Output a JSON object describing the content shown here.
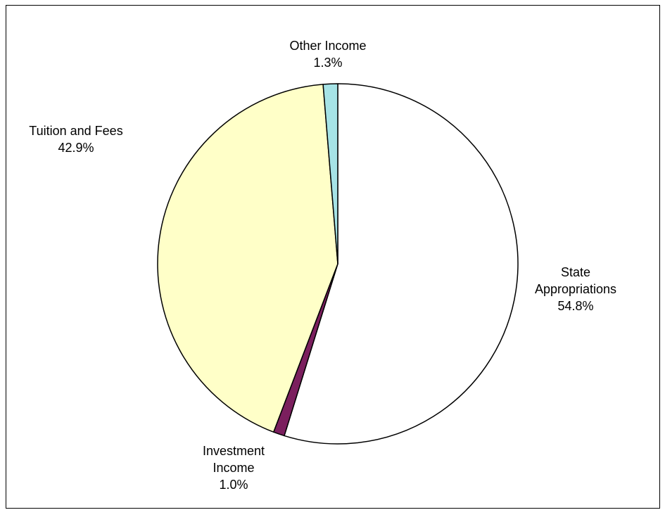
{
  "chart_data": {
    "type": "pie",
    "title": "",
    "slices": [
      {
        "name": "State Appropriations",
        "label_lines": [
          "State",
          "Appropriations"
        ],
        "value": 54.8,
        "value_label": "54.8%",
        "color": "#ffffff"
      },
      {
        "name": "Investment Income",
        "label_lines": [
          "Investment",
          "Income"
        ],
        "value": 1.0,
        "value_label": "1.0%",
        "color": "#7b1f5e"
      },
      {
        "name": "Tuition and Fees",
        "label_lines": [
          "Tuition and Fees"
        ],
        "value": 42.9,
        "value_label": "42.9%",
        "color": "#ffffc8"
      },
      {
        "name": "Other Income",
        "label_lines": [
          "Other Income"
        ],
        "value": 1.3,
        "value_label": "1.3%",
        "color": "#a6e3e6"
      }
    ],
    "start": "12 o'clock",
    "direction": "clockwise",
    "legend": "none",
    "outline_color": "#000000"
  }
}
